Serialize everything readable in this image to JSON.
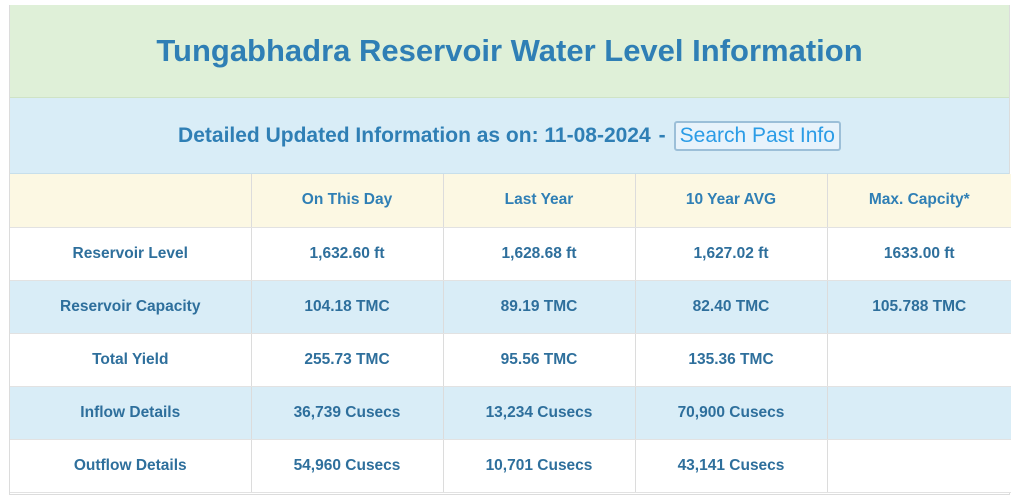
{
  "title": "Tungabhadra Reservoir Water Level Information",
  "subtitle": {
    "label": "Detailed Updated Information as on: 11-08-2024",
    "separator": "-",
    "search_button": "Search Past Info"
  },
  "table": {
    "headers": [
      "",
      "On This Day",
      "Last Year",
      "10 Year AVG",
      "Max. Capcity*"
    ],
    "rows": [
      {
        "label": "Reservoir Level",
        "values": [
          "1,632.60 ft",
          "1,628.68 ft",
          "1,627.02 ft",
          "1633.00 ft"
        ]
      },
      {
        "label": "Reservoir Capacity",
        "values": [
          "104.18 TMC",
          "89.19 TMC",
          "82.40 TMC",
          "105.788 TMC"
        ]
      },
      {
        "label": "Total Yield",
        "values": [
          "255.73 TMC",
          "95.56 TMC",
          "135.36 TMC",
          ""
        ]
      },
      {
        "label": "Inflow Details",
        "values": [
          "36,739 Cusecs",
          "13,234 Cusecs",
          "70,900 Cusecs",
          ""
        ]
      },
      {
        "label": "Outflow Details",
        "values": [
          "54,960 Cusecs",
          "10,701 Cusecs",
          "43,141 Cusecs",
          ""
        ]
      }
    ]
  },
  "colors": {
    "title_bg": "#dff0d8",
    "subtitle_bg": "#d9edf7",
    "header_bg": "#fcf8e3",
    "text": "#2f7fb5"
  }
}
